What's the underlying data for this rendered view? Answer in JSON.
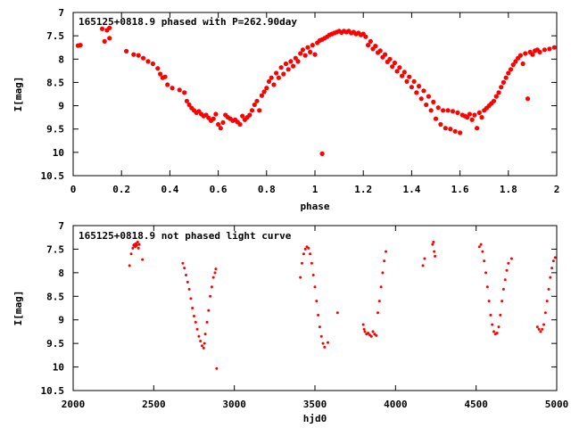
{
  "colors": {
    "background": "#ffffff",
    "axes": "#000000",
    "points": "#ff0000"
  },
  "chart_data": [
    {
      "type": "scatter",
      "title": "165125+0818.9 phased with P=262.90day",
      "xlabel": "phase",
      "ylabel": "I[mag]",
      "xlim": [
        0,
        2
      ],
      "ylim": [
        7,
        10.5
      ],
      "y_inverted": true,
      "grid": false,
      "legend": "none",
      "marker": "filled-circle-large",
      "xticks": [
        0,
        0.2,
        0.4,
        0.6,
        0.8,
        1,
        1.2,
        1.4,
        1.6,
        1.8,
        2
      ],
      "xtick_labels": [
        "0",
        "0.2",
        "0.4",
        "0.6",
        "0.8",
        "1",
        "1.2",
        "1.4",
        "1.6",
        "1.8",
        "2"
      ],
      "yticks": [
        7,
        7.5,
        8,
        8.5,
        9,
        9.5,
        10,
        10.5
      ],
      "ytick_labels": [
        "7",
        "7.5",
        "8",
        "8.5",
        "9",
        "9.5",
        "10",
        "10.5"
      ],
      "points": [
        [
          0.02,
          7.71
        ],
        [
          0.03,
          7.7
        ],
        [
          0.12,
          7.35
        ],
        [
          0.13,
          7.62
        ],
        [
          0.14,
          7.38
        ],
        [
          0.15,
          7.55
        ],
        [
          0.15,
          7.33
        ],
        [
          0.22,
          7.83
        ],
        [
          0.25,
          7.9
        ],
        [
          0.27,
          7.92
        ],
        [
          0.29,
          7.98
        ],
        [
          0.31,
          8.05
        ],
        [
          0.33,
          8.1
        ],
        [
          0.35,
          8.2
        ],
        [
          0.36,
          8.32
        ],
        [
          0.37,
          8.4
        ],
        [
          0.38,
          8.38
        ],
        [
          0.39,
          8.55
        ],
        [
          0.41,
          8.62
        ],
        [
          0.44,
          8.66
        ],
        [
          0.46,
          8.72
        ],
        [
          0.47,
          8.9
        ],
        [
          0.48,
          8.98
        ],
        [
          0.49,
          9.05
        ],
        [
          0.5,
          9.1
        ],
        [
          0.51,
          9.15
        ],
        [
          0.52,
          9.12
        ],
        [
          0.53,
          9.18
        ],
        [
          0.54,
          9.22
        ],
        [
          0.55,
          9.2
        ],
        [
          0.56,
          9.26
        ],
        [
          0.57,
          9.32
        ],
        [
          0.58,
          9.28
        ],
        [
          0.59,
          9.18
        ],
        [
          0.6,
          9.4
        ],
        [
          0.61,
          9.48
        ],
        [
          0.62,
          9.36
        ],
        [
          0.63,
          9.2
        ],
        [
          0.64,
          9.25
        ],
        [
          0.65,
          9.28
        ],
        [
          0.66,
          9.32
        ],
        [
          0.67,
          9.3
        ],
        [
          0.68,
          9.35
        ],
        [
          0.69,
          9.4
        ],
        [
          0.7,
          9.22
        ],
        [
          0.71,
          9.3
        ],
        [
          0.72,
          9.25
        ],
        [
          0.73,
          9.2
        ],
        [
          0.74,
          9.1
        ],
        [
          0.75,
          8.98
        ],
        [
          0.76,
          8.9
        ],
        [
          0.77,
          9.1
        ],
        [
          0.78,
          8.78
        ],
        [
          0.79,
          8.7
        ],
        [
          0.8,
          8.62
        ],
        [
          0.81,
          8.48
        ],
        [
          0.82,
          8.4
        ],
        [
          0.83,
          8.55
        ],
        [
          0.84,
          8.3
        ],
        [
          0.85,
          8.4
        ],
        [
          0.86,
          8.18
        ],
        [
          0.87,
          8.32
        ],
        [
          0.88,
          8.1
        ],
        [
          0.89,
          8.22
        ],
        [
          0.9,
          8.05
        ],
        [
          0.91,
          8.15
        ],
        [
          0.92,
          7.98
        ],
        [
          0.93,
          8.05
        ],
        [
          0.94,
          7.88
        ],
        [
          0.95,
          7.8
        ],
        [
          0.96,
          7.92
        ],
        [
          0.97,
          7.75
        ],
        [
          0.98,
          7.85
        ],
        [
          0.99,
          7.7
        ],
        [
          1.0,
          7.9
        ],
        [
          1.01,
          7.65
        ],
        [
          1.02,
          7.6
        ],
        [
          1.03,
          7.58
        ],
        [
          1.04,
          7.55
        ],
        [
          1.05,
          7.52
        ],
        [
          1.06,
          7.48
        ],
        [
          1.07,
          7.46
        ],
        [
          1.08,
          7.44
        ],
        [
          1.09,
          7.42
        ],
        [
          1.1,
          7.4
        ],
        [
          1.11,
          7.43
        ],
        [
          1.12,
          7.4
        ],
        [
          1.13,
          7.42
        ],
        [
          1.14,
          7.4
        ],
        [
          1.15,
          7.44
        ],
        [
          1.16,
          7.42
        ],
        [
          1.17,
          7.46
        ],
        [
          1.18,
          7.44
        ],
        [
          1.19,
          7.48
        ],
        [
          1.2,
          7.46
        ],
        [
          1.21,
          7.52
        ],
        [
          1.22,
          7.7
        ],
        [
          1.23,
          7.62
        ],
        [
          1.24,
          7.78
        ],
        [
          1.25,
          7.72
        ],
        [
          1.26,
          7.86
        ],
        [
          1.27,
          7.82
        ],
        [
          1.28,
          7.96
        ],
        [
          1.29,
          7.9
        ],
        [
          1.3,
          8.06
        ],
        [
          1.31,
          8.0
        ],
        [
          1.32,
          8.16
        ],
        [
          1.33,
          8.08
        ],
        [
          1.34,
          8.26
        ],
        [
          1.35,
          8.18
        ],
        [
          1.36,
          8.36
        ],
        [
          1.37,
          8.28
        ],
        [
          1.38,
          8.48
        ],
        [
          1.39,
          8.38
        ],
        [
          1.4,
          8.6
        ],
        [
          1.41,
          8.48
        ],
        [
          1.42,
          8.72
        ],
        [
          1.43,
          8.58
        ],
        [
          1.44,
          8.85
        ],
        [
          1.45,
          8.68
        ],
        [
          1.46,
          8.98
        ],
        [
          1.47,
          8.8
        ],
        [
          1.48,
          9.1
        ],
        [
          1.49,
          8.92
        ],
        [
          1.5,
          9.28
        ],
        [
          1.51,
          9.04
        ],
        [
          1.52,
          9.4
        ],
        [
          1.53,
          9.1
        ],
        [
          1.54,
          9.48
        ],
        [
          1.55,
          9.1
        ],
        [
          1.56,
          9.5
        ],
        [
          1.57,
          9.12
        ],
        [
          1.58,
          9.55
        ],
        [
          1.59,
          9.15
        ],
        [
          1.6,
          9.58
        ],
        [
          1.61,
          9.2
        ],
        [
          1.62,
          9.22
        ],
        [
          1.63,
          9.25
        ],
        [
          1.64,
          9.18
        ],
        [
          1.65,
          9.3
        ],
        [
          1.66,
          9.2
        ],
        [
          1.67,
          9.48
        ],
        [
          1.68,
          9.15
        ],
        [
          1.69,
          9.25
        ],
        [
          1.7,
          9.1
        ],
        [
          1.71,
          9.05
        ],
        [
          1.72,
          9.0
        ],
        [
          1.73,
          8.95
        ],
        [
          1.74,
          8.9
        ],
        [
          1.75,
          8.8
        ],
        [
          1.76,
          8.72
        ],
        [
          1.77,
          8.6
        ],
        [
          1.78,
          8.5
        ],
        [
          1.79,
          8.4
        ],
        [
          1.8,
          8.3
        ],
        [
          1.81,
          8.22
        ],
        [
          1.82,
          8.12
        ],
        [
          1.83,
          8.05
        ],
        [
          1.84,
          7.98
        ],
        [
          1.85,
          7.92
        ],
        [
          1.86,
          8.1
        ],
        [
          1.87,
          7.88
        ],
        [
          1.88,
          8.85
        ],
        [
          1.89,
          7.85
        ],
        [
          1.9,
          7.9
        ],
        [
          1.91,
          7.82
        ],
        [
          1.92,
          7.8
        ],
        [
          1.93,
          7.85
        ],
        [
          1.95,
          7.8
        ],
        [
          1.97,
          7.78
        ],
        [
          1.99,
          7.75
        ],
        [
          1.03,
          10.03
        ]
      ]
    },
    {
      "type": "scatter",
      "title": "165125+0818.9 not phased light curve",
      "xlabel": "hjd0",
      "ylabel": "I[mag]",
      "xlim": [
        2000,
        5000
      ],
      "ylim": [
        7,
        10.5
      ],
      "y_inverted": true,
      "grid": false,
      "legend": "none",
      "marker": "filled-circle-small",
      "xticks": [
        2000,
        2500,
        3000,
        3500,
        4000,
        4500,
        5000
      ],
      "xtick_labels": [
        "2000",
        "2500",
        "3000",
        "3500",
        "4000",
        "4500",
        "5000"
      ],
      "yticks": [
        7,
        7.5,
        8,
        8.5,
        9,
        9.5,
        10,
        10.5
      ],
      "ytick_labels": [
        "7",
        "7.5",
        "8",
        "8.5",
        "9",
        "9.5",
        "10",
        "10.5"
      ],
      "points": [
        [
          2350,
          7.85
        ],
        [
          2360,
          7.6
        ],
        [
          2370,
          7.48
        ],
        [
          2375,
          7.42
        ],
        [
          2380,
          7.4
        ],
        [
          2385,
          7.45
        ],
        [
          2390,
          7.38
        ],
        [
          2395,
          7.42
        ],
        [
          2400,
          7.35
        ],
        [
          2405,
          7.48
        ],
        [
          2410,
          7.4
        ],
        [
          2430,
          7.72
        ],
        [
          2680,
          7.8
        ],
        [
          2690,
          7.9
        ],
        [
          2700,
          8.05
        ],
        [
          2710,
          8.2
        ],
        [
          2720,
          8.35
        ],
        [
          2730,
          8.55
        ],
        [
          2740,
          8.75
        ],
        [
          2750,
          8.92
        ],
        [
          2760,
          9.05
        ],
        [
          2770,
          9.2
        ],
        [
          2780,
          9.35
        ],
        [
          2790,
          9.45
        ],
        [
          2800,
          9.55
        ],
        [
          2810,
          9.6
        ],
        [
          2815,
          9.5
        ],
        [
          2820,
          9.3
        ],
        [
          2830,
          9.05
        ],
        [
          2840,
          8.8
        ],
        [
          2850,
          8.5
        ],
        [
          2860,
          8.3
        ],
        [
          2870,
          8.1
        ],
        [
          2880,
          8.0
        ],
        [
          2885,
          7.92
        ],
        [
          2890,
          10.03
        ],
        [
          3410,
          8.1
        ],
        [
          3420,
          7.8
        ],
        [
          3430,
          7.6
        ],
        [
          3440,
          7.5
        ],
        [
          3450,
          7.45
        ],
        [
          3460,
          7.48
        ],
        [
          3470,
          7.6
        ],
        [
          3480,
          7.8
        ],
        [
          3490,
          8.05
        ],
        [
          3500,
          8.3
        ],
        [
          3510,
          8.6
        ],
        [
          3520,
          8.9
        ],
        [
          3530,
          9.15
        ],
        [
          3540,
          9.35
        ],
        [
          3550,
          9.5
        ],
        [
          3560,
          9.58
        ],
        [
          3580,
          9.48
        ],
        [
          3640,
          8.85
        ],
        [
          3800,
          9.1
        ],
        [
          3805,
          9.2
        ],
        [
          3810,
          9.25
        ],
        [
          3820,
          9.3
        ],
        [
          3830,
          9.28
        ],
        [
          3840,
          9.32
        ],
        [
          3850,
          9.35
        ],
        [
          3860,
          9.25
        ],
        [
          3870,
          9.3
        ],
        [
          3880,
          9.33
        ],
        [
          3890,
          8.85
        ],
        [
          3900,
          8.6
        ],
        [
          3910,
          8.3
        ],
        [
          3920,
          8.0
        ],
        [
          3930,
          7.75
        ],
        [
          3940,
          7.55
        ],
        [
          4170,
          7.85
        ],
        [
          4180,
          7.7
        ],
        [
          4230,
          7.4
        ],
        [
          4235,
          7.35
        ],
        [
          4240,
          7.55
        ],
        [
          4245,
          7.65
        ],
        [
          4520,
          7.45
        ],
        [
          4530,
          7.4
        ],
        [
          4540,
          7.55
        ],
        [
          4550,
          7.75
        ],
        [
          4560,
          8.0
        ],
        [
          4570,
          8.3
        ],
        [
          4580,
          8.6
        ],
        [
          4590,
          8.9
        ],
        [
          4600,
          9.1
        ],
        [
          4610,
          9.25
        ],
        [
          4620,
          9.3
        ],
        [
          4630,
          9.28
        ],
        [
          4640,
          9.15
        ],
        [
          4650,
          8.9
        ],
        [
          4660,
          8.6
        ],
        [
          4670,
          8.35
        ],
        [
          4680,
          8.15
        ],
        [
          4690,
          7.95
        ],
        [
          4700,
          7.8
        ],
        [
          4720,
          7.7
        ],
        [
          4880,
          9.15
        ],
        [
          4890,
          9.2
        ],
        [
          4900,
          9.25
        ],
        [
          4910,
          9.2
        ],
        [
          4920,
          9.1
        ],
        [
          4930,
          8.85
        ],
        [
          4940,
          8.6
        ],
        [
          4950,
          8.35
        ],
        [
          4960,
          8.1
        ],
        [
          4970,
          7.9
        ],
        [
          4980,
          7.75
        ],
        [
          4990,
          7.68
        ]
      ]
    }
  ]
}
